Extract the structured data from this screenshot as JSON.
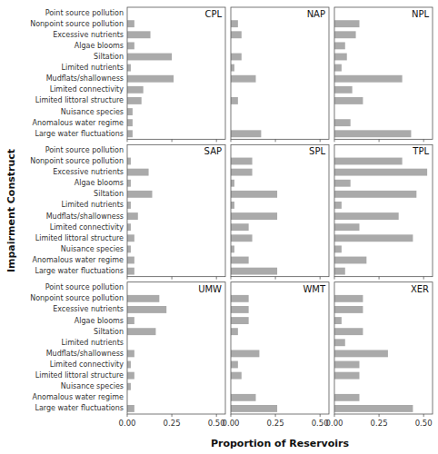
{
  "chart_data": [
    {
      "type": "bar",
      "orientation": "horizontal",
      "title": "CPL",
      "xlabel": "Proportion of Reservoirs",
      "ylabel": "Impairment Construct",
      "tick_labels": "y",
      "color": "#aaaaaa",
      "categories": [
        "Point source pollution",
        "Nonpoint source pollution",
        "Excessive nutrients",
        "Algae blooms",
        "Siltation",
        "Limited nutrients",
        "Mudflats/shallowness",
        "Limited connectivity",
        "Limited littoral structure",
        "Nuisance species",
        "Anomalous water regime",
        "Large water fluctuations"
      ],
      "values": [
        0.0,
        0.04,
        0.13,
        0.04,
        0.25,
        0.02,
        0.26,
        0.09,
        0.08,
        0.03,
        0.03,
        0.03
      ],
      "xlim": [
        0,
        0.55
      ],
      "xticks": [
        {
          "value": 0.0,
          "label": "0.00"
        },
        {
          "value": 0.25,
          "label": "0.25"
        },
        {
          "value": 0.5,
          "label": "0.50"
        }
      ]
    },
    {
      "type": "bar",
      "orientation": "horizontal",
      "title": "NAP",
      "tick_labels": false,
      "color": "#aaaaaa",
      "categories": [
        "Point source pollution",
        "Nonpoint source pollution",
        "Excessive nutrients",
        "Algae blooms",
        "Siltation",
        "Limited nutrients",
        "Mudflats/shallowness",
        "Limited connectivity",
        "Limited littoral structure",
        "Nuisance species",
        "Anomalous water regime",
        "Large water fluctuations"
      ],
      "values": [
        0.0,
        0.04,
        0.06,
        0.0,
        0.06,
        0.02,
        0.14,
        0.0,
        0.04,
        0.0,
        0.0,
        0.17
      ],
      "xlim": [
        0,
        0.55
      ],
      "xticks": [
        {
          "value": 0.0,
          "label": "0.00"
        },
        {
          "value": 0.25,
          "label": "0.25"
        },
        {
          "value": 0.5,
          "label": "0.50"
        }
      ]
    },
    {
      "type": "bar",
      "orientation": "horizontal",
      "title": "NPL",
      "tick_labels": false,
      "color": "#aaaaaa",
      "categories": [
        "Point source pollution",
        "Nonpoint source pollution",
        "Excessive nutrients",
        "Algae blooms",
        "Siltation",
        "Limited nutrients",
        "Mudflats/shallowness",
        "Limited connectivity",
        "Limited littoral structure",
        "Nuisance species",
        "Anomalous water regime",
        "Large water fluctuations"
      ],
      "values": [
        0.0,
        0.14,
        0.12,
        0.06,
        0.07,
        0.04,
        0.38,
        0.1,
        0.16,
        0.0,
        0.09,
        0.43
      ],
      "xlim": [
        0,
        0.55
      ],
      "xticks": [
        {
          "value": 0.0,
          "label": "0.00"
        },
        {
          "value": 0.25,
          "label": "0.25"
        },
        {
          "value": 0.5,
          "label": "0.50"
        }
      ]
    },
    {
      "type": "bar",
      "orientation": "horizontal",
      "title": "SAP",
      "tick_labels": "y",
      "color": "#aaaaaa",
      "categories": [
        "Point source pollution",
        "Nonpoint source pollution",
        "Excessive nutrients",
        "Algae blooms",
        "Siltation",
        "Limited nutrients",
        "Mudflats/shallowness",
        "Limited connectivity",
        "Limited littoral structure",
        "Nuisance species",
        "Anomalous water regime",
        "Large water fluctuations"
      ],
      "values": [
        0.0,
        0.02,
        0.12,
        0.02,
        0.14,
        0.02,
        0.06,
        0.02,
        0.04,
        0.02,
        0.04,
        0.04
      ],
      "xlim": [
        0,
        0.55
      ],
      "xticks": [
        {
          "value": 0.0,
          "label": "0.00"
        },
        {
          "value": 0.25,
          "label": "0.25"
        },
        {
          "value": 0.5,
          "label": "0.50"
        }
      ]
    },
    {
      "type": "bar",
      "orientation": "horizontal",
      "title": "SPL",
      "tick_labels": false,
      "color": "#aaaaaa",
      "categories": [
        "Point source pollution",
        "Nonpoint source pollution",
        "Excessive nutrients",
        "Algae blooms",
        "Siltation",
        "Limited nutrients",
        "Mudflats/shallowness",
        "Limited connectivity",
        "Limited littoral structure",
        "Nuisance species",
        "Anomalous water regime",
        "Large water fluctuations"
      ],
      "values": [
        0.0,
        0.12,
        0.12,
        0.02,
        0.26,
        0.02,
        0.26,
        0.1,
        0.12,
        0.02,
        0.1,
        0.26
      ],
      "xlim": [
        0,
        0.55
      ],
      "xticks": [
        {
          "value": 0.0,
          "label": "0.00"
        },
        {
          "value": 0.25,
          "label": "0.25"
        },
        {
          "value": 0.5,
          "label": "0.50"
        }
      ]
    },
    {
      "type": "bar",
      "orientation": "horizontal",
      "title": "TPL",
      "tick_labels": false,
      "color": "#aaaaaa",
      "categories": [
        "Point source pollution",
        "Nonpoint source pollution",
        "Excessive nutrients",
        "Algae blooms",
        "Siltation",
        "Limited nutrients",
        "Mudflats/shallowness",
        "Limited connectivity",
        "Limited littoral structure",
        "Nuisance species",
        "Anomalous water regime",
        "Large water fluctuations"
      ],
      "values": [
        0.0,
        0.38,
        0.52,
        0.09,
        0.46,
        0.04,
        0.36,
        0.14,
        0.44,
        0.04,
        0.18,
        0.06
      ],
      "xlim": [
        0,
        0.55
      ],
      "xticks": [
        {
          "value": 0.0,
          "label": "0.00"
        },
        {
          "value": 0.25,
          "label": "0.25"
        },
        {
          "value": 0.5,
          "label": "0.50"
        }
      ]
    },
    {
      "type": "bar",
      "orientation": "horizontal",
      "title": "UMW",
      "color": "#aaaaaa",
      "categories": [
        "Point source pollution",
        "Nonpoint source pollution",
        "Excessive nutrients",
        "Algae blooms",
        "Siltation",
        "Limited nutrients",
        "Mudflats/shallowness",
        "Limited connectivity",
        "Limited littoral structure",
        "Nuisance species",
        "Anomalous water regime",
        "Large water fluctuations"
      ],
      "values": [
        0.0,
        0.18,
        0.22,
        0.04,
        0.16,
        0.0,
        0.04,
        0.02,
        0.04,
        0.02,
        0.0,
        0.04
      ],
      "xlim": [
        0,
        0.55
      ],
      "xticks": [
        {
          "value": 0.0,
          "label": "0.00"
        },
        {
          "value": 0.25,
          "label": "0.25"
        },
        {
          "value": 0.5,
          "label": "0.50"
        }
      ]
    },
    {
      "type": "bar",
      "orientation": "horizontal",
      "title": "WMT",
      "tick_labels": "x",
      "color": "#aaaaaa",
      "categories": [
        "Point source pollution",
        "Nonpoint source pollution",
        "Excessive nutrients",
        "Algae blooms",
        "Siltation",
        "Limited nutrients",
        "Mudflats/shallowness",
        "Limited connectivity",
        "Limited littoral structure",
        "Nuisance species",
        "Anomalous water regime",
        "Large water fluctuations"
      ],
      "values": [
        0.0,
        0.1,
        0.1,
        0.1,
        0.04,
        0.0,
        0.16,
        0.04,
        0.06,
        0.0,
        0.14,
        0.26
      ],
      "xlim": [
        0,
        0.55
      ],
      "xticks": [
        {
          "value": 0.0,
          "label": "0.00"
        },
        {
          "value": 0.25,
          "label": "0.25"
        },
        {
          "value": 0.5,
          "label": "0.50"
        }
      ]
    },
    {
      "type": "bar",
      "orientation": "horizontal",
      "title": "XER",
      "tick_labels": "x",
      "color": "#aaaaaa",
      "categories": [
        "Point source pollution",
        "Nonpoint source pollution",
        "Excessive nutrients",
        "Algae blooms",
        "Siltation",
        "Limited nutrients",
        "Mudflats/shallowness",
        "Limited connectivity",
        "Limited littoral structure",
        "Nuisance species",
        "Anomalous water regime",
        "Large water fluctuations"
      ],
      "values": [
        0.0,
        0.16,
        0.16,
        0.04,
        0.16,
        0.06,
        0.3,
        0.14,
        0.14,
        0.0,
        0.14,
        0.44
      ],
      "xlim": [
        0,
        0.55
      ],
      "xticks": [
        {
          "value": 0.0,
          "label": "0.00"
        },
        {
          "value": 0.25,
          "label": "0.25"
        },
        {
          "value": 0.5,
          "label": "0.50"
        }
      ]
    }
  ]
}
